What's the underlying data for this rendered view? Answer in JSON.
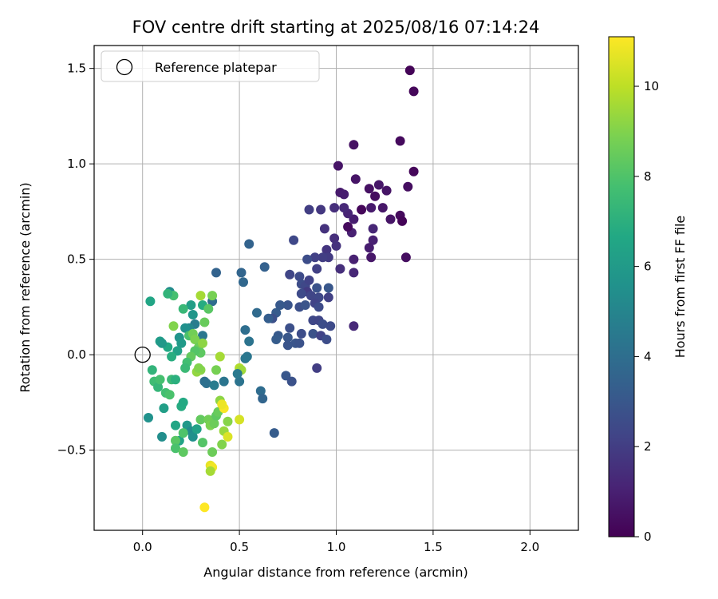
{
  "chart_data": {
    "type": "scatter",
    "title": "FOV centre drift starting at 2025/08/16 07:14:24",
    "xlabel": "Angular distance from reference (arcmin)",
    "ylabel": "Rotation from reference (arcmin)",
    "xlim": [
      -0.25,
      2.25
    ],
    "ylim": [
      -0.92,
      1.62
    ],
    "xticks": [
      0.0,
      0.5,
      1.0,
      1.5,
      2.0
    ],
    "xtick_labels": [
      "0.0",
      "0.5",
      "1.0",
      "1.5",
      "2.0"
    ],
    "yticks": [
      -0.5,
      0.0,
      0.5,
      1.0,
      1.5
    ],
    "ytick_labels": [
      "−0.5",
      "0.0",
      "0.5",
      "1.0",
      "1.5"
    ],
    "grid": true,
    "legend": {
      "placement": "top-left",
      "entries": [
        "Reference platepar"
      ]
    },
    "reference_point": {
      "x": 0.0,
      "y": 0.0,
      "label": "Reference platepar"
    },
    "colorbar": {
      "label": "Hours from first FF file",
      "colormap": "viridis",
      "range": [
        0,
        11.1
      ],
      "ticks": [
        0,
        2,
        4,
        6,
        8,
        10
      ],
      "tick_labels": [
        "0",
        "2",
        "4",
        "6",
        "8",
        "10"
      ]
    },
    "points": [
      [
        1.38,
        1.49,
        0.1
      ],
      [
        1.4,
        1.38,
        0.2
      ],
      [
        1.33,
        1.12,
        0.3
      ],
      [
        1.09,
        1.1,
        0.5
      ],
      [
        1.4,
        0.96,
        0.2
      ],
      [
        1.01,
        0.99,
        0.6
      ],
      [
        1.37,
        0.88,
        0.4
      ],
      [
        1.1,
        0.92,
        0.6
      ],
      [
        1.02,
        0.85,
        0.8
      ],
      [
        1.04,
        0.84,
        0.9
      ],
      [
        1.17,
        0.87,
        0.5
      ],
      [
        1.22,
        0.89,
        0.7
      ],
      [
        1.26,
        0.86,
        0.6
      ],
      [
        1.2,
        0.83,
        0.4
      ],
      [
        1.33,
        0.73,
        0.3
      ],
      [
        1.34,
        0.7,
        0.1
      ],
      [
        1.28,
        0.71,
        0.6
      ],
      [
        1.24,
        0.77,
        0.7
      ],
      [
        1.18,
        0.77,
        0.8
      ],
      [
        1.13,
        0.76,
        0.2
      ],
      [
        1.09,
        0.71,
        0.9
      ],
      [
        1.06,
        0.74,
        1.1
      ],
      [
        1.04,
        0.77,
        1.3
      ],
      [
        0.99,
        0.77,
        1.5
      ],
      [
        0.92,
        0.76,
        1.8
      ],
      [
        0.86,
        0.76,
        2.0
      ],
      [
        1.08,
        0.64,
        1.0
      ],
      [
        1.06,
        0.67,
        0.3
      ],
      [
        0.94,
        0.66,
        1.6
      ],
      [
        1.19,
        0.66,
        1.2
      ],
      [
        1.19,
        0.6,
        1.0
      ],
      [
        1.17,
        0.56,
        0.9
      ],
      [
        0.99,
        0.61,
        1.5
      ],
      [
        1.0,
        0.57,
        1.6
      ],
      [
        0.95,
        0.55,
        1.7
      ],
      [
        0.96,
        0.51,
        1.9
      ],
      [
        0.93,
        0.51,
        2.0
      ],
      [
        0.89,
        0.51,
        2.1
      ],
      [
        1.09,
        0.5,
        1.0
      ],
      [
        1.18,
        0.51,
        0.7
      ],
      [
        1.36,
        0.51,
        0.4
      ],
      [
        0.9,
        0.45,
        2.1
      ],
      [
        1.02,
        0.45,
        1.5
      ],
      [
        1.09,
        0.43,
        1.2
      ],
      [
        0.85,
        0.5,
        2.6
      ],
      [
        0.78,
        0.6,
        2.4
      ],
      [
        0.76,
        0.42,
        2.3
      ],
      [
        0.81,
        0.41,
        2.5
      ],
      [
        0.82,
        0.37,
        2.6
      ],
      [
        0.84,
        0.36,
        2.4
      ],
      [
        0.86,
        0.39,
        2.2
      ],
      [
        0.9,
        0.35,
        2.8
      ],
      [
        0.96,
        0.35,
        3.0
      ],
      [
        0.85,
        0.33,
        1.9
      ],
      [
        0.82,
        0.32,
        2.5
      ],
      [
        0.87,
        0.31,
        2.3
      ],
      [
        0.91,
        0.3,
        2.4
      ],
      [
        0.89,
        0.27,
        2.2
      ],
      [
        0.81,
        0.25,
        2.7
      ],
      [
        0.84,
        0.26,
        2.9
      ],
      [
        0.96,
        0.3,
        2.1
      ],
      [
        0.91,
        0.25,
        2.5
      ],
      [
        0.75,
        0.26,
        2.9
      ],
      [
        0.71,
        0.26,
        3.1
      ],
      [
        0.69,
        0.22,
        3.2
      ],
      [
        0.67,
        0.19,
        2.7
      ],
      [
        0.65,
        0.19,
        3.3
      ],
      [
        0.63,
        0.46,
        3.4
      ],
      [
        0.55,
        0.58,
        3.5
      ],
      [
        0.51,
        0.43,
        3.6
      ],
      [
        0.52,
        0.38,
        3.7
      ],
      [
        0.59,
        0.22,
        3.8
      ],
      [
        0.88,
        0.18,
        2.4
      ],
      [
        0.91,
        0.18,
        2.3
      ],
      [
        0.93,
        0.16,
        2.6
      ],
      [
        0.97,
        0.15,
        2.5
      ],
      [
        0.88,
        0.11,
        2.8
      ],
      [
        0.92,
        0.1,
        2.2
      ],
      [
        0.95,
        0.08,
        2.6
      ],
      [
        0.82,
        0.11,
        2.6
      ],
      [
        0.76,
        0.14,
        2.7
      ],
      [
        0.75,
        0.09,
        3.0
      ],
      [
        0.79,
        0.06,
        2.9
      ],
      [
        0.81,
        0.06,
        2.8
      ],
      [
        0.7,
        0.1,
        3.1
      ],
      [
        0.69,
        0.08,
        3.2
      ],
      [
        0.75,
        0.05,
        2.9
      ],
      [
        1.09,
        0.15,
        1.3
      ],
      [
        0.9,
        -0.07,
        2.0
      ],
      [
        0.74,
        -0.11,
        3.0
      ],
      [
        0.77,
        -0.14,
        2.8
      ],
      [
        0.68,
        -0.41,
        3.2
      ],
      [
        0.61,
        -0.19,
        3.9
      ],
      [
        0.62,
        -0.23,
        3.6
      ],
      [
        0.53,
        0.13,
        4.0
      ],
      [
        0.55,
        0.07,
        4.2
      ],
      [
        0.54,
        -0.01,
        4.3
      ],
      [
        0.53,
        -0.02,
        4.4
      ],
      [
        0.5,
        -0.14,
        4.2
      ],
      [
        0.42,
        -0.14,
        4.3
      ],
      [
        0.32,
        -0.14,
        4.0
      ],
      [
        0.33,
        -0.15,
        4.1
      ],
      [
        0.36,
        0.28,
        3.9
      ],
      [
        0.38,
        0.43,
        3.5
      ],
      [
        0.31,
        0.1,
        4.4
      ],
      [
        0.27,
        0.16,
        4.6
      ],
      [
        0.29,
        0.02,
        4.5
      ],
      [
        0.24,
        0.13,
        4.9
      ],
      [
        0.24,
        0.14,
        5.1
      ],
      [
        0.26,
        0.21,
        5.8
      ],
      [
        0.25,
        0.26,
        6.2
      ],
      [
        0.31,
        0.26,
        6.8
      ],
      [
        0.22,
        0.14,
        5.5
      ],
      [
        0.19,
        0.09,
        5.7
      ],
      [
        0.2,
        0.06,
        6.0
      ],
      [
        0.18,
        0.02,
        6.3
      ],
      [
        0.13,
        0.04,
        6.6
      ],
      [
        0.09,
        0.07,
        6.1
      ],
      [
        0.1,
        0.06,
        5.9
      ],
      [
        0.14,
        0.33,
        5.3
      ],
      [
        0.16,
        0.31,
        7.8
      ],
      [
        0.13,
        0.32,
        7.2
      ],
      [
        0.21,
        0.24,
        7.4
      ],
      [
        0.04,
        0.28,
        6.5
      ],
      [
        0.16,
        0.15,
        9.0
      ],
      [
        0.24,
        0.1,
        7.9
      ],
      [
        0.32,
        0.17,
        8.5
      ],
      [
        0.36,
        0.31,
        8.8
      ],
      [
        0.34,
        0.24,
        8.2
      ],
      [
        0.3,
        0.31,
        9.6
      ],
      [
        0.26,
        0.11,
        8.7
      ],
      [
        0.27,
        0.08,
        8.9
      ],
      [
        0.29,
        0.04,
        8.6
      ],
      [
        0.31,
        0.06,
        9.2
      ],
      [
        0.3,
        0.01,
        8.3
      ],
      [
        0.27,
        0.02,
        8.1
      ],
      [
        0.25,
        -0.01,
        8.4
      ],
      [
        0.23,
        -0.04,
        7.7
      ],
      [
        0.3,
        -0.08,
        9.1
      ],
      [
        0.28,
        -0.09,
        9.3
      ],
      [
        0.22,
        -0.07,
        7.5
      ],
      [
        0.15,
        -0.01,
        6.9
      ],
      [
        0.05,
        -0.08,
        7.2
      ],
      [
        0.06,
        -0.14,
        7.6
      ],
      [
        0.08,
        -0.17,
        7.3
      ],
      [
        0.09,
        -0.13,
        7.8
      ],
      [
        0.12,
        -0.2,
        7.7
      ],
      [
        0.14,
        -0.21,
        7.9
      ],
      [
        0.15,
        -0.13,
        7.5
      ],
      [
        0.17,
        -0.13,
        7.0
      ],
      [
        0.2,
        -0.27,
        6.8
      ],
      [
        0.21,
        -0.25,
        6.7
      ],
      [
        0.03,
        -0.33,
        5.6
      ],
      [
        0.11,
        -0.28,
        6.2
      ],
      [
        0.1,
        -0.43,
        5.4
      ],
      [
        0.17,
        -0.37,
        6.5
      ],
      [
        0.19,
        -0.45,
        6.4
      ],
      [
        0.23,
        -0.37,
        5.9
      ],
      [
        0.25,
        -0.4,
        5.3
      ],
      [
        0.26,
        -0.43,
        5.5
      ],
      [
        0.28,
        -0.39,
        6.3
      ],
      [
        0.3,
        -0.34,
        8.4
      ],
      [
        0.31,
        -0.46,
        8.1
      ],
      [
        0.34,
        -0.34,
        8.7
      ],
      [
        0.35,
        -0.37,
        8.9
      ],
      [
        0.37,
        -0.36,
        8.6
      ],
      [
        0.38,
        -0.32,
        8.3
      ],
      [
        0.36,
        -0.51,
        8.6
      ],
      [
        0.39,
        -0.3,
        8.5
      ],
      [
        0.4,
        -0.24,
        9.2
      ],
      [
        0.42,
        -0.4,
        9.4
      ],
      [
        0.41,
        -0.47,
        9.0
      ],
      [
        0.44,
        -0.43,
        10.5
      ],
      [
        0.44,
        -0.35,
        9.1
      ],
      [
        0.42,
        -0.28,
        11.0
      ],
      [
        0.41,
        -0.26,
        10.8
      ],
      [
        0.5,
        -0.34,
        10.4
      ],
      [
        0.17,
        -0.45,
        8.2
      ],
      [
        0.17,
        -0.49,
        7.9
      ],
      [
        0.21,
        -0.41,
        8.0
      ],
      [
        0.21,
        -0.51,
        8.3
      ],
      [
        0.35,
        -0.58,
        10.7
      ],
      [
        0.36,
        -0.59,
        10.9
      ],
      [
        0.35,
        -0.61,
        9.6
      ],
      [
        0.32,
        -0.8,
        11.1
      ],
      [
        0.38,
        -0.08,
        8.8
      ],
      [
        0.29,
        -0.07,
        9.0
      ],
      [
        0.4,
        -0.01,
        9.6
      ],
      [
        0.37,
        -0.16,
        4.6
      ],
      [
        0.5,
        -0.07,
        9.8
      ],
      [
        0.51,
        -0.08,
        9.5
      ],
      [
        0.49,
        -0.1,
        4.5
      ]
    ]
  }
}
